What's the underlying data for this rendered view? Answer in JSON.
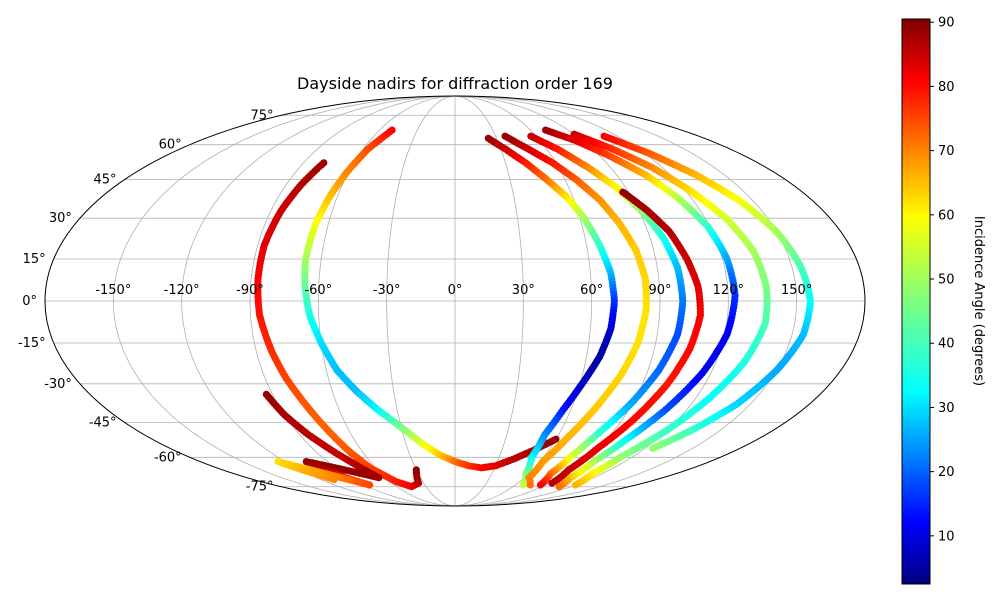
{
  "chart_data": {
    "type": "scatter",
    "projection": "mollweide",
    "title": "Dayside nadirs for diffraction order 169",
    "grid": true,
    "longitude_ticks": [
      "-150°",
      "-120°",
      "-90°",
      "-60°",
      "-30°",
      "0°",
      "30°",
      "60°",
      "90°",
      "120°",
      "150°"
    ],
    "latitude_ticks": [
      "75°",
      "60°",
      "45°",
      "30°",
      "15°",
      "0°",
      "-15°",
      "-30°",
      "-45°",
      "-60°",
      "-75°"
    ],
    "colorbar": {
      "label": "Incidence Angle (degrees)",
      "colormap": "jet",
      "range": [
        2.5,
        90.5
      ],
      "ticks": [
        "10",
        "20",
        "30",
        "40",
        "50",
        "60",
        "70",
        "80",
        "90"
      ]
    },
    "series": [
      {
        "points": [
          {
            "lon": -50,
            "lat": 67,
            "incidence": 80
          },
          {
            "lon": -57,
            "lat": 58,
            "incidence": 73
          },
          {
            "lon": -61,
            "lat": 48,
            "incidence": 68
          },
          {
            "lon": -64,
            "lat": 38,
            "incidence": 63
          },
          {
            "lon": -66,
            "lat": 28,
            "incidence": 57
          },
          {
            "lon": -67,
            "lat": 15,
            "incidence": 50
          },
          {
            "lon": -66,
            "lat": 5,
            "incidence": 44
          },
          {
            "lon": -64,
            "lat": -5,
            "incidence": 38
          },
          {
            "lon": -60,
            "lat": -15,
            "incidence": 33
          },
          {
            "lon": -55,
            "lat": -25,
            "incidence": 30
          },
          {
            "lon": -48,
            "lat": -33,
            "incidence": 30
          },
          {
            "lon": -40,
            "lat": -40,
            "incidence": 35
          },
          {
            "lon": -30,
            "lat": -47,
            "incidence": 45
          },
          {
            "lon": -20,
            "lat": -54,
            "incidence": 55
          },
          {
            "lon": -10,
            "lat": -59,
            "incidence": 62
          },
          {
            "lon": 0,
            "lat": -62,
            "incidence": 70
          },
          {
            "lon": 10,
            "lat": -64,
            "incidence": 75
          },
          {
            "lon": 20,
            "lat": -65,
            "incidence": 79
          },
          {
            "lon": 30,
            "lat": -64,
            "incidence": 82
          },
          {
            "lon": 40,
            "lat": -61,
            "incidence": 85
          },
          {
            "lon": 50,
            "lat": -57,
            "incidence": 87
          },
          {
            "lon": 60,
            "lat": -52,
            "incidence": 89
          }
        ]
      },
      {
        "points": [
          {
            "lon": -78,
            "lat": 52,
            "incidence": 88
          },
          {
            "lon": -82,
            "lat": 43,
            "incidence": 86
          },
          {
            "lon": -85,
            "lat": 33,
            "incidence": 84
          },
          {
            "lon": -87,
            "lat": 20,
            "incidence": 82
          },
          {
            "lon": -87,
            "lat": 8,
            "incidence": 80
          },
          {
            "lon": -86,
            "lat": -5,
            "incidence": 78
          },
          {
            "lon": -83,
            "lat": -18,
            "incidence": 76
          },
          {
            "lon": -80,
            "lat": -28,
            "incidence": 74
          },
          {
            "lon": -76,
            "lat": -38,
            "incidence": 72
          },
          {
            "lon": -72,
            "lat": -48,
            "incidence": 71
          },
          {
            "lon": -68,
            "lat": -58,
            "incidence": 72
          },
          {
            "lon": -64,
            "lat": -65,
            "incidence": 74
          },
          {
            "lon": -55,
            "lat": -72,
            "incidence": 77
          },
          {
            "lon": -45,
            "lat": -75,
            "incidence": 80
          },
          {
            "lon": -35,
            "lat": -73,
            "incidence": 85
          },
          {
            "lon": -30,
            "lat": -66,
            "incidence": 89
          }
        ]
      },
      {
        "points": [
          {
            "lon": -93,
            "lat": -34,
            "incidence": 89
          },
          {
            "lon": -90,
            "lat": -42,
            "incidence": 87
          },
          {
            "lon": -85,
            "lat": -50,
            "incidence": 86
          },
          {
            "lon": -78,
            "lat": -58,
            "incidence": 84
          },
          {
            "lon": -72,
            "lat": -64,
            "incidence": 86
          },
          {
            "lon": -66,
            "lat": -70,
            "incidence": 88
          },
          {
            "lon": -105,
            "lat": -62,
            "incidence": 89
          },
          {
            "lon": -100,
            "lat": -66,
            "incidence": 86
          },
          {
            "lon": -95,
            "lat": -70,
            "incidence": 80
          },
          {
            "lon": -85,
            "lat": -74,
            "incidence": 74
          },
          {
            "lon": -125,
            "lat": -62,
            "incidence": 60
          },
          {
            "lon": -118,
            "lat": -66,
            "incidence": 64
          },
          {
            "lon": -108,
            "lat": -71,
            "incidence": 68
          }
        ]
      },
      {
        "points": [
          {
            "lon": 24,
            "lat": 63,
            "incidence": 88
          },
          {
            "lon": 33,
            "lat": 58,
            "incidence": 84
          },
          {
            "lon": 42,
            "lat": 52,
            "incidence": 78
          },
          {
            "lon": 50,
            "lat": 45,
            "incidence": 70
          },
          {
            "lon": 57,
            "lat": 38,
            "incidence": 60
          },
          {
            "lon": 62,
            "lat": 30,
            "incidence": 50
          },
          {
            "lon": 66,
            "lat": 20,
            "incidence": 40
          },
          {
            "lon": 69,
            "lat": 10,
            "incidence": 30
          },
          {
            "lon": 70,
            "lat": 0,
            "incidence": 18
          },
          {
            "lon": 69,
            "lat": -10,
            "incidence": 10
          },
          {
            "lon": 66,
            "lat": -20,
            "incidence": 5
          },
          {
            "lon": 61,
            "lat": -30,
            "incidence": 8
          },
          {
            "lon": 56,
            "lat": -40,
            "incidence": 15
          },
          {
            "lon": 52,
            "lat": -50,
            "incidence": 25
          },
          {
            "lon": 52,
            "lat": -60,
            "incidence": 35
          },
          {
            "lon": 58,
            "lat": -68,
            "incidence": 45
          },
          {
            "lon": 68,
            "lat": -74,
            "incidence": 52
          }
        ]
      },
      {
        "points": [
          {
            "lon": 37,
            "lat": 64,
            "incidence": 89
          },
          {
            "lon": 48,
            "lat": 58,
            "incidence": 84
          },
          {
            "lon": 58,
            "lat": 52,
            "incidence": 78
          },
          {
            "lon": 66,
            "lat": 45,
            "incidence": 72
          },
          {
            "lon": 73,
            "lat": 37,
            "incidence": 67
          },
          {
            "lon": 78,
            "lat": 28,
            "incidence": 64
          },
          {
            "lon": 82,
            "lat": 18,
            "incidence": 62
          },
          {
            "lon": 84,
            "lat": 8,
            "incidence": 61
          },
          {
            "lon": 84,
            "lat": -3,
            "incidence": 60
          },
          {
            "lon": 82,
            "lat": -15,
            "incidence": 60
          },
          {
            "lon": 78,
            "lat": -27,
            "incidence": 61
          },
          {
            "lon": 72,
            "lat": -40,
            "incidence": 62
          },
          {
            "lon": 66,
            "lat": -52,
            "incidence": 64
          },
          {
            "lon": 62,
            "lat": -62,
            "incidence": 66
          },
          {
            "lon": 64,
            "lat": -70,
            "incidence": 68
          },
          {
            "lon": 75,
            "lat": -74,
            "incidence": 70
          }
        ]
      },
      {
        "points": [
          {
            "lon": 56,
            "lat": 64,
            "incidence": 85
          },
          {
            "lon": 67,
            "lat": 58,
            "incidence": 78
          },
          {
            "lon": 77,
            "lat": 50,
            "incidence": 68
          },
          {
            "lon": 85,
            "lat": 42,
            "incidence": 58
          },
          {
            "lon": 91,
            "lat": 33,
            "incidence": 48
          },
          {
            "lon": 96,
            "lat": 23,
            "incidence": 38
          },
          {
            "lon": 99,
            "lat": 12,
            "incidence": 30
          },
          {
            "lon": 100,
            "lat": 0,
            "incidence": 24
          },
          {
            "lon": 99,
            "lat": -12,
            "incidence": 20
          },
          {
            "lon": 95,
            "lat": -25,
            "incidence": 22
          },
          {
            "lon": 89,
            "lat": -38,
            "incidence": 28
          },
          {
            "lon": 82,
            "lat": -50,
            "incidence": 40
          },
          {
            "lon": 78,
            "lat": -60,
            "incidence": 55
          },
          {
            "lon": 78,
            "lat": -68,
            "incidence": 70
          },
          {
            "lon": 85,
            "lat": -74,
            "incidence": 80
          }
        ]
      },
      {
        "points": [
          {
            "lon": 87,
            "lat": 40,
            "incidence": 89
          },
          {
            "lon": 94,
            "lat": 33,
            "incidence": 87
          },
          {
            "lon": 100,
            "lat": 25,
            "incidence": 86
          },
          {
            "lon": 104,
            "lat": 15,
            "incidence": 84
          },
          {
            "lon": 107,
            "lat": 5,
            "incidence": 82
          },
          {
            "lon": 108,
            "lat": -5,
            "incidence": 80
          },
          {
            "lon": 106,
            "lat": -17,
            "incidence": 79
          },
          {
            "lon": 102,
            "lat": -30,
            "incidence": 78
          },
          {
            "lon": 96,
            "lat": -44,
            "incidence": 79
          },
          {
            "lon": 90,
            "lat": -56,
            "incidence": 81
          },
          {
            "lon": 88,
            "lat": -66,
            "incidence": 84
          },
          {
            "lon": 93,
            "lat": -73,
            "incidence": 86
          }
        ]
      },
      {
        "points": [
          {
            "lon": 72,
            "lat": 67,
            "incidence": 88
          },
          {
            "lon": 85,
            "lat": 62,
            "incidence": 82
          },
          {
            "lon": 96,
            "lat": 55,
            "incidence": 74
          },
          {
            "lon": 106,
            "lat": 47,
            "incidence": 64
          },
          {
            "lon": 113,
            "lat": 38,
            "incidence": 52
          },
          {
            "lon": 119,
            "lat": 27,
            "incidence": 40
          },
          {
            "lon": 122,
            "lat": 15,
            "incidence": 28
          },
          {
            "lon": 123,
            "lat": 2,
            "incidence": 18
          },
          {
            "lon": 121,
            "lat": -12,
            "incidence": 12
          },
          {
            "lon": 116,
            "lat": -26,
            "incidence": 12
          },
          {
            "lon": 109,
            "lat": -40,
            "incidence": 20
          },
          {
            "lon": 102,
            "lat": -52,
            "incidence": 35
          },
          {
            "lon": 98,
            "lat": -62,
            "incidence": 50
          },
          {
            "lon": 100,
            "lat": -70,
            "incidence": 62
          },
          {
            "lon": 108,
            "lat": -75,
            "incidence": 70
          }
        ]
      },
      {
        "points": [
          {
            "lon": 90,
            "lat": 65,
            "incidence": 84
          },
          {
            "lon": 103,
            "lat": 58,
            "incidence": 76
          },
          {
            "lon": 114,
            "lat": 50,
            "incidence": 68
          },
          {
            "lon": 123,
            "lat": 40,
            "incidence": 60
          },
          {
            "lon": 130,
            "lat": 30,
            "incidence": 54
          },
          {
            "lon": 135,
            "lat": 18,
            "incidence": 50
          },
          {
            "lon": 137,
            "lat": 5,
            "incidence": 46
          },
          {
            "lon": 137,
            "lat": -8,
            "incidence": 42
          },
          {
            "lon": 133,
            "lat": -22,
            "incidence": 38
          },
          {
            "lon": 127,
            "lat": -35,
            "incidence": 36
          },
          {
            "lon": 120,
            "lat": -48,
            "incidence": 40
          },
          {
            "lon": 112,
            "lat": -60,
            "incidence": 48
          },
          {
            "lon": 112,
            "lat": -68,
            "incidence": 58
          },
          {
            "lon": 120,
            "lat": -74,
            "incidence": 64
          }
        ]
      },
      {
        "points": [
          {
            "lon": 110,
            "lat": 64,
            "incidence": 80
          },
          {
            "lon": 123,
            "lat": 56,
            "incidence": 72
          },
          {
            "lon": 134,
            "lat": 47,
            "incidence": 64
          },
          {
            "lon": 143,
            "lat": 37,
            "incidence": 57
          },
          {
            "lon": 150,
            "lat": 25,
            "incidence": 50
          },
          {
            "lon": 154,
            "lat": 12,
            "incidence": 42
          },
          {
            "lon": 156,
            "lat": 0,
            "incidence": 36
          },
          {
            "lon": 155,
            "lat": -12,
            "incidence": 30
          },
          {
            "lon": 150,
            "lat": -25,
            "incidence": 28
          },
          {
            "lon": 143,
            "lat": -38,
            "incidence": 32
          },
          {
            "lon": 134,
            "lat": -48,
            "incidence": 40
          },
          {
            "lon": 125,
            "lat": -56,
            "incidence": 48
          }
        ]
      }
    ]
  }
}
